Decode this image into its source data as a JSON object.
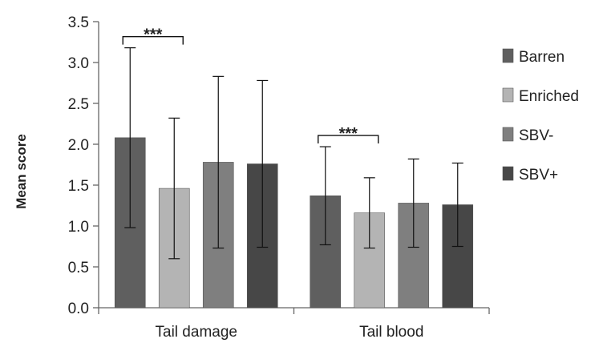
{
  "chart_data": {
    "type": "bar",
    "title": "",
    "xlabel": "",
    "ylabel": "Mean score",
    "ylim": [
      0,
      3.5
    ],
    "yticks": [
      "0.0",
      "0.5",
      "1.0",
      "1.5",
      "2.0",
      "2.5",
      "3.0",
      "3.5"
    ],
    "categories": [
      "Tail damage",
      "Tail blood"
    ],
    "series": [
      {
        "name": "Barren",
        "color": "#5f5f5f",
        "values": [
          2.08,
          1.37
        ],
        "error": [
          1.1,
          0.6
        ]
      },
      {
        "name": "Enriched",
        "color": "#b4b4b4",
        "values": [
          1.46,
          1.16
        ],
        "error": [
          0.86,
          0.43
        ]
      },
      {
        "name": "SBV-",
        "color": "#7f7f7f",
        "values": [
          1.78,
          1.28
        ],
        "error": [
          1.05,
          0.54
        ]
      },
      {
        "name": "SBV+",
        "color": "#474747",
        "values": [
          1.76,
          1.26
        ],
        "error": [
          1.02,
          0.51
        ]
      }
    ],
    "grid": false,
    "legend_position": "right",
    "annotations": [
      {
        "text": "***",
        "category": "Tail damage",
        "between": [
          "Barren",
          "Enriched"
        ]
      },
      {
        "text": "***",
        "category": "Tail blood",
        "between": [
          "Barren",
          "Enriched"
        ]
      }
    ]
  }
}
